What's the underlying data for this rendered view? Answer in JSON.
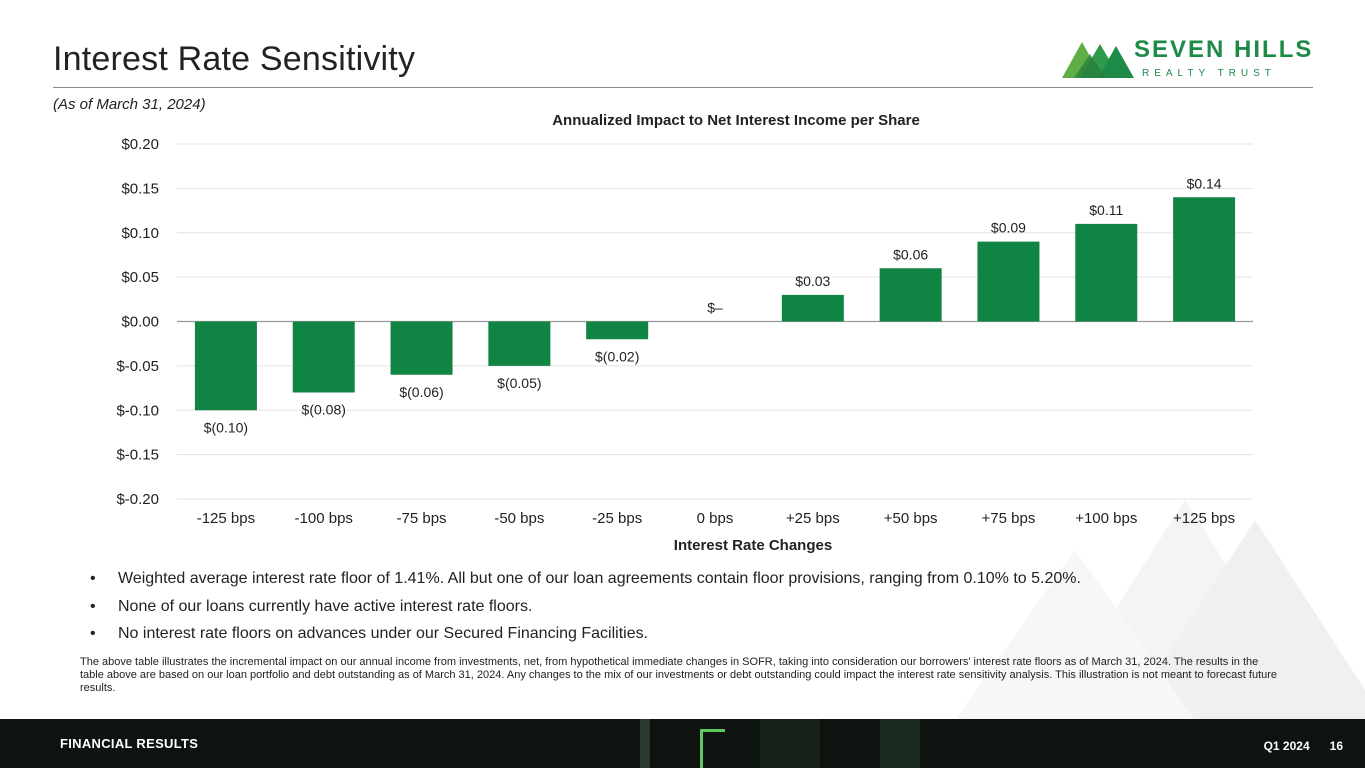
{
  "header": {
    "title": "Interest Rate Sensitivity",
    "subtitle": "(As of March 31, 2024)"
  },
  "logo": {
    "name": "SEVEN HILLS",
    "tagline": "REALTY TRUST",
    "icon": "mountain-logo-icon"
  },
  "colors": {
    "bar": "#108443",
    "brand": "#1e8a48",
    "footer_bg": "#0d1410"
  },
  "chart_data": {
    "type": "bar",
    "title": "Annualized Impact to Net Interest Income per Share",
    "xlabel": "Interest Rate Changes",
    "ylabel": "",
    "categories": [
      "-125 bps",
      "-100 bps",
      "-75 bps",
      "-50 bps",
      "-25 bps",
      "0 bps",
      "+25 bps",
      "+50 bps",
      "+75 bps",
      "+100 bps",
      "+125 bps"
    ],
    "values": [
      -0.1,
      -0.08,
      -0.06,
      -0.05,
      -0.02,
      0.0,
      0.03,
      0.06,
      0.09,
      0.11,
      0.14
    ],
    "data_labels": [
      "$(0.10)",
      "$(0.08)",
      "$(0.06)",
      "$(0.05)",
      "$(0.02)",
      "$–",
      "$0.03",
      "$0.06",
      "$0.09",
      "$0.11",
      "$0.14"
    ],
    "ylim": [
      -0.2,
      0.2
    ],
    "yticks": [
      0.2,
      0.15,
      0.1,
      0.05,
      0.0,
      -0.05,
      -0.1,
      -0.15,
      -0.2
    ],
    "ytick_labels": [
      "$0.20",
      "$0.15",
      "$0.10",
      "$0.05",
      "$0.00",
      "$-0.05",
      "$-0.10",
      "$-0.15",
      "$-0.20"
    ],
    "grid": true,
    "legend": "none"
  },
  "bullets": [
    "Weighted average interest rate floor of 1.41%. All but one of our loan agreements contain floor provisions, ranging from 0.10% to 5.20%.",
    "None of our loans currently have active interest rate floors.",
    "No interest rate floors on advances under our Secured Financing Facilities."
  ],
  "footnote": "The above table illustrates the incremental impact on our annual income from investments, net, from hypothetical immediate changes in SOFR, taking into consideration our borrowers' interest rate floors as of March 31, 2024. The results in the table above are based on our loan portfolio and debt outstanding as of March 31, 2024. Any changes to the mix of our investments or debt outstanding could impact the interest rate sensitivity analysis. This illustration is not meant to forecast future results.",
  "footer": {
    "section": "FINANCIAL RESULTS",
    "period": "Q1 2024",
    "page": "16"
  }
}
